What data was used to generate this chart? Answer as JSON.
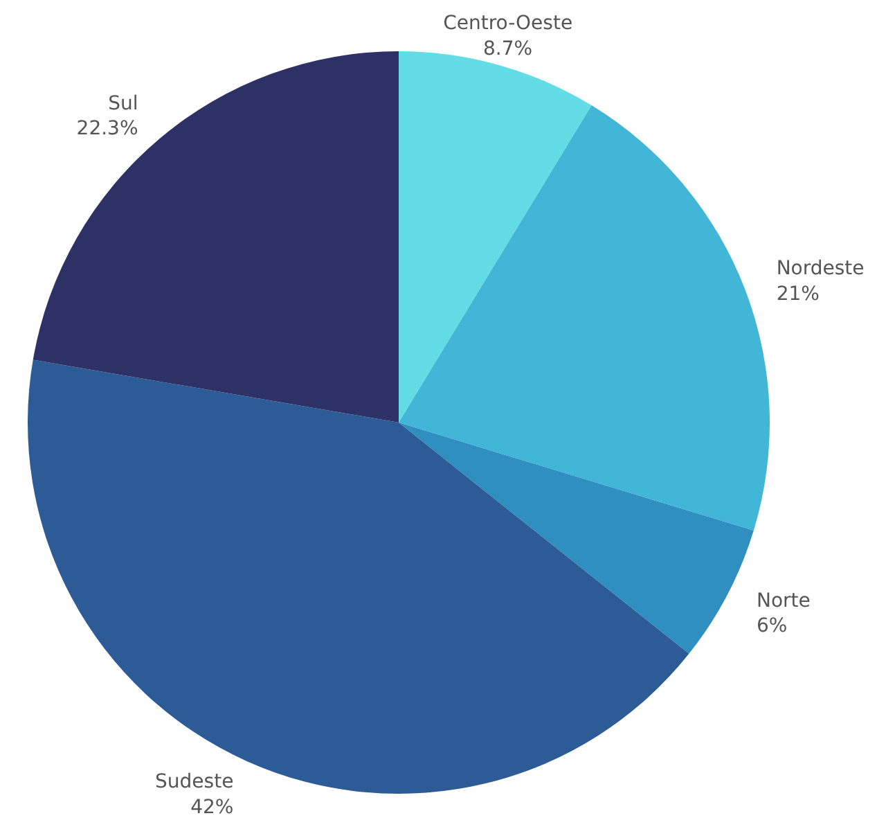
{
  "chart_data": {
    "type": "pie",
    "categories": [
      "Centro-Oeste",
      "Nordeste",
      "Norte",
      "Sudeste",
      "Sul"
    ],
    "values": [
      8.7,
      21,
      6,
      42,
      22.3
    ],
    "colors": [
      "#62dde6",
      "#42b6d6",
      "#2e8fc0",
      "#2d5b96",
      "#2d3166"
    ],
    "value_labels": [
      "8.7%",
      "21%",
      "6%",
      "42%",
      "22.3%"
    ]
  }
}
